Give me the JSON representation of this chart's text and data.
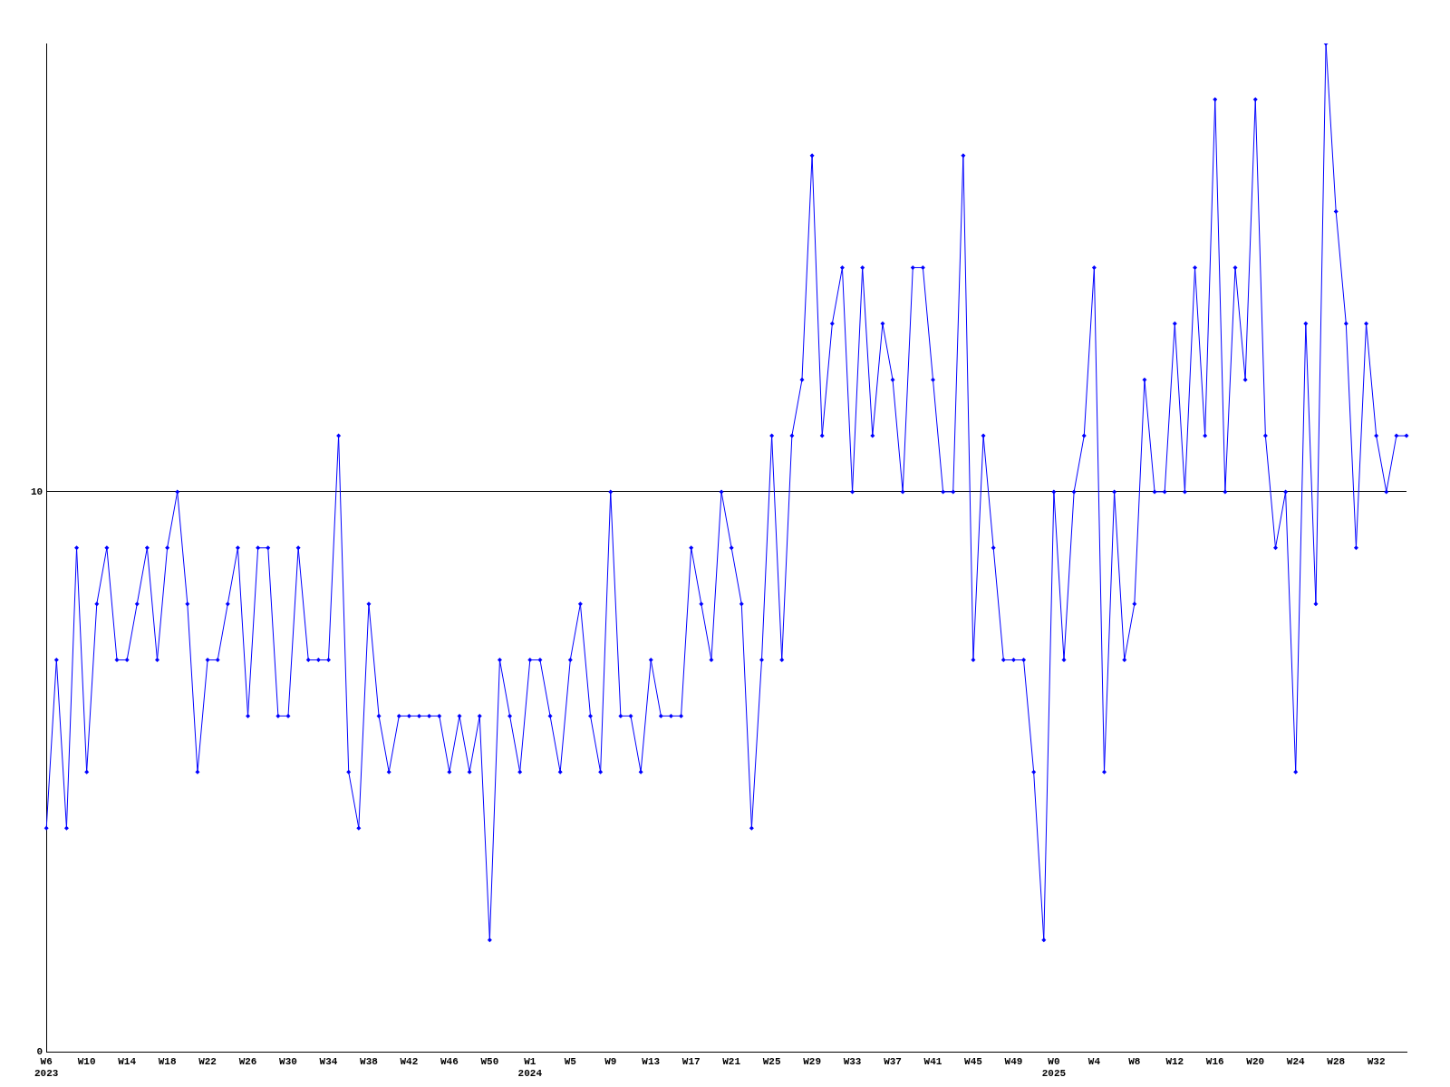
{
  "chart_data": {
    "type": "line",
    "categories": [
      "W6\n2023",
      null,
      null,
      null,
      "W10",
      null,
      null,
      null,
      "W14",
      null,
      null,
      null,
      "W18",
      null,
      null,
      null,
      "W22",
      null,
      null,
      null,
      "W26",
      null,
      null,
      null,
      "W30",
      null,
      null,
      null,
      "W34",
      null,
      null,
      null,
      "W38",
      null,
      null,
      null,
      "W42",
      null,
      null,
      null,
      "W46",
      null,
      null,
      null,
      "W50",
      null,
      null,
      null,
      "W1\n2024",
      null,
      null,
      null,
      "W5",
      null,
      null,
      null,
      "W9",
      null,
      null,
      null,
      "W13",
      null,
      null,
      null,
      "W17",
      null,
      null,
      null,
      "W21",
      null,
      null,
      null,
      "W25",
      null,
      null,
      null,
      "W29",
      null,
      null,
      null,
      "W33",
      null,
      null,
      null,
      "W37",
      null,
      null,
      null,
      "W41",
      null,
      null,
      null,
      "W45",
      null,
      null,
      null,
      "W49",
      null,
      null,
      null,
      "W0\n2025",
      null,
      null,
      null,
      "W4",
      null,
      null,
      null,
      "W8",
      null,
      null,
      null,
      "W12",
      null,
      null,
      null,
      "W16",
      null,
      null,
      null,
      "W20",
      null,
      null,
      null,
      "W24",
      null,
      null,
      null,
      "W28",
      null,
      null,
      null,
      "W32",
      null,
      null,
      null
    ],
    "series": [
      {
        "color": "#0000ff",
        "values": [
          4,
          7,
          4,
          9,
          5,
          8,
          9,
          7,
          7,
          8,
          9,
          7,
          9,
          10,
          8,
          5,
          7,
          7,
          8,
          9,
          6,
          9,
          9,
          6,
          6,
          9,
          7,
          7,
          7,
          11,
          5,
          4,
          8,
          6,
          5,
          6,
          6,
          6,
          6,
          6,
          5,
          6,
          5,
          6,
          2,
          7,
          6,
          5,
          7,
          7,
          6,
          5,
          7,
          8,
          6,
          5,
          10,
          6,
          6,
          5,
          7,
          6,
          6,
          6,
          9,
          8,
          7,
          10,
          9,
          8,
          4,
          7,
          11,
          7,
          11,
          12,
          16,
          11,
          13,
          14,
          10,
          14,
          11,
          13,
          12,
          10,
          14,
          14,
          12,
          10,
          10,
          16,
          7,
          11,
          9,
          7,
          7,
          7,
          5,
          2,
          10,
          7,
          10,
          11,
          14,
          5,
          10,
          7,
          8,
          12,
          10,
          10,
          13,
          10,
          14,
          11,
          17,
          10,
          14,
          12,
          17,
          11,
          9,
          10,
          5,
          13,
          8,
          18,
          15,
          13,
          9,
          13,
          11,
          10,
          11,
          11
        ]
      }
    ],
    "ylim": [
      0,
      18
    ],
    "yticks": [
      0,
      10
    ],
    "grid": "y",
    "legend": false,
    "marker": "diamond",
    "line_style": "solid"
  }
}
